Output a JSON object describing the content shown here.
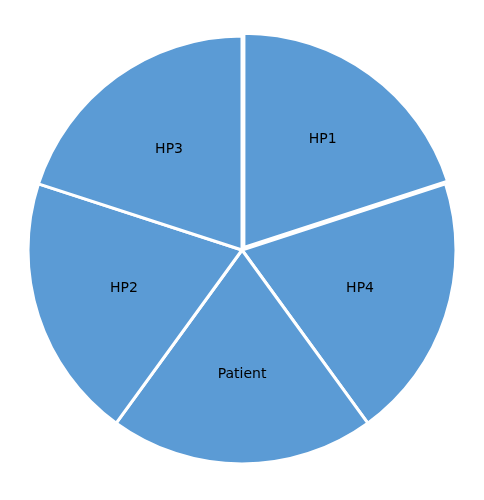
{
  "chart_data": {
    "type": "pie",
    "categories": [
      "HP1",
      "HP4",
      "Patient",
      "HP2",
      "HP3"
    ],
    "values": [
      20,
      20,
      20,
      20,
      20
    ],
    "colors": [
      "#5B9BD5",
      "#5B9BD5",
      "#5B9BD5",
      "#5B9BD5",
      "#5B9BD5"
    ]
  }
}
